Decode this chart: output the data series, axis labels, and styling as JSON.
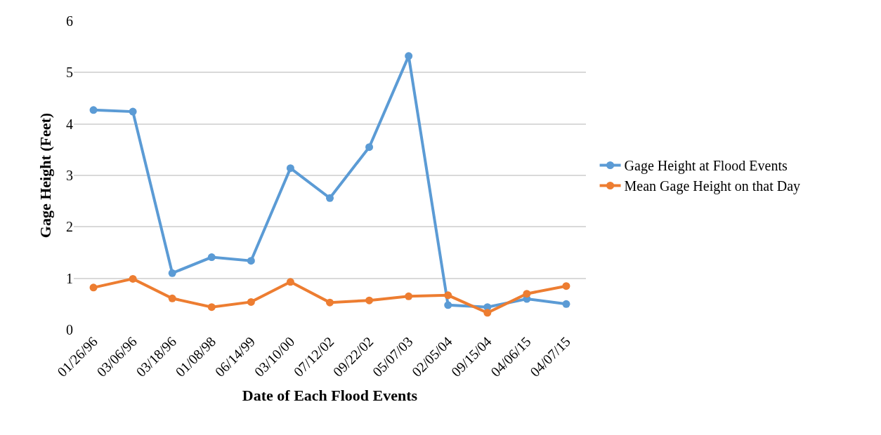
{
  "chart_data": {
    "type": "line",
    "xlabel": "Date of Each Flood Events",
    "ylabel": "Gage Height (Feet)",
    "categories": [
      "01/26/96",
      "03/06/96",
      "03/18/96",
      "01/08/98",
      "06/14/99",
      "03/10/00",
      "07/12/02",
      "09/22/02",
      "05/07/03",
      "02/05/04",
      "09/15/04",
      "04/06/15",
      "04/07/15"
    ],
    "series": [
      {
        "name": "Gage Height at Flood Events",
        "color": "#5b9bd5",
        "values": [
          4.27,
          4.24,
          1.1,
          1.41,
          1.34,
          3.14,
          2.56,
          3.55,
          5.32,
          0.48,
          0.44,
          0.6,
          0.5
        ]
      },
      {
        "name": "Mean Gage Height on that Day",
        "color": "#ed7d31",
        "values": [
          0.82,
          0.99,
          0.61,
          0.44,
          0.54,
          0.93,
          0.53,
          0.57,
          0.65,
          0.67,
          0.33,
          0.7,
          0.85
        ]
      }
    ],
    "ylim": [
      0,
      6
    ],
    "yticks": [
      0,
      1,
      2,
      3,
      4,
      5,
      6
    ],
    "grid": "y",
    "legend": "right",
    "marker": "circle",
    "line_style": "solid"
  }
}
